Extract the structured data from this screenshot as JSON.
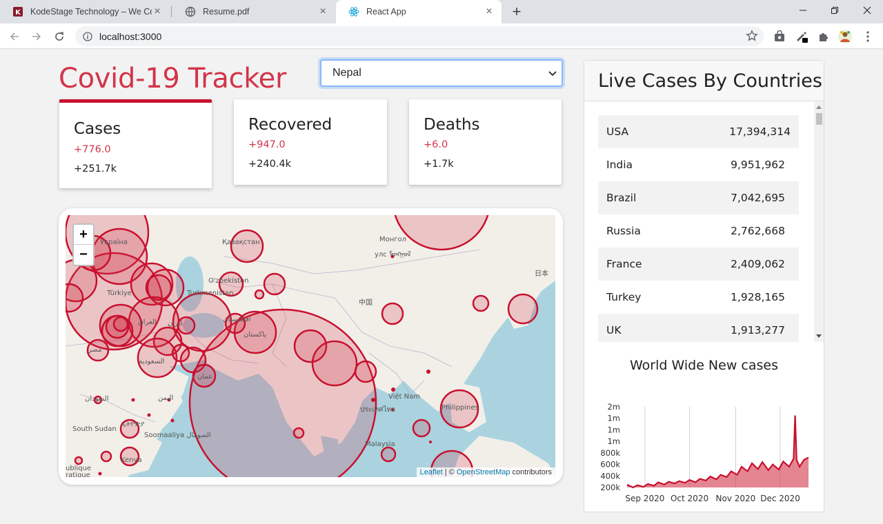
{
  "browser": {
    "tabs": [
      {
        "title": "KodeStage Technology – We Cod",
        "active": false,
        "icon": "kodestage-logo-icon"
      },
      {
        "title": "Resume.pdf",
        "active": false,
        "icon": "globe-icon"
      },
      {
        "title": "React App",
        "active": true,
        "icon": "react-logo-icon"
      }
    ],
    "url": "localhost:3000"
  },
  "app": {
    "title": "Covid-19 Tracker",
    "selected_country": "Nepal"
  },
  "cards": [
    {
      "title": "Cases",
      "today": "+776.0",
      "total": "+251.7k",
      "selected": true
    },
    {
      "title": "Recovered",
      "today": "+947.0",
      "total": "+240.4k",
      "selected": false
    },
    {
      "title": "Deaths",
      "today": "+6.0",
      "total": "+1.7k",
      "selected": false
    }
  ],
  "map": {
    "zoom_in": "+",
    "zoom_out": "−",
    "attribution": {
      "leaflet": "Leaflet",
      "sep": " | © ",
      "osm": "OpenStreetMap",
      "rest": " contributors"
    },
    "labels": [
      "Қазақстан",
      "Монгол",
      "улс ᠮᠣᠩᠭᠣᠯ",
      "日本",
      "O'zbekiston",
      "Turkmenistan",
      "中国",
      "Türkiye",
      "پاکستان",
      "افغانستان",
      "العراق",
      "ایران",
      "مصر",
      "السعودية",
      "عمان",
      "Việt Nam",
      "ประเทศไทย",
      "Philippines",
      "Malaysia",
      "South Sudan",
      "Soomaaliya الصومال",
      "اليمن",
      "السودان",
      "ኢትዮጵያ",
      "Kenya",
      "ublique",
      "ratique",
      "Україна"
    ]
  },
  "live_cases": {
    "title": "Live Cases By Countries",
    "rows": [
      {
        "country": "USA",
        "cases": "17,394,314"
      },
      {
        "country": "India",
        "cases": "9,951,962"
      },
      {
        "country": "Brazil",
        "cases": "7,042,695"
      },
      {
        "country": "Russia",
        "cases": "2,762,668"
      },
      {
        "country": "France",
        "cases": "2,409,062"
      },
      {
        "country": "Turkey",
        "cases": "1,928,165"
      },
      {
        "country": "UK",
        "cases": "1,913,277"
      }
    ]
  },
  "chart_data": {
    "type": "area",
    "title": "World Wide New cases",
    "xlabel": "",
    "ylabel": "",
    "x_tick_labels": [
      "Sep 2020",
      "Oct 2020",
      "Nov 2020",
      "Dec 2020"
    ],
    "y_tick_labels": [
      "2m",
      "1m",
      "1m",
      "1m",
      "800k",
      "600k",
      "400k",
      "200k"
    ],
    "ylim": [
      200000,
      1600000
    ],
    "grid": "vertical",
    "series": [
      {
        "color": "#c8102e",
        "x": [
          "2020-08-20",
          "2020-08-24",
          "2020-08-27",
          "2020-08-31",
          "2020-09-03",
          "2020-09-07",
          "2020-09-10",
          "2020-09-14",
          "2020-09-17",
          "2020-09-21",
          "2020-09-24",
          "2020-09-28",
          "2020-10-01",
          "2020-10-05",
          "2020-10-08",
          "2020-10-12",
          "2020-10-15",
          "2020-10-19",
          "2020-10-22",
          "2020-10-26",
          "2020-10-29",
          "2020-11-02",
          "2020-11-05",
          "2020-11-09",
          "2020-11-12",
          "2020-11-16",
          "2020-11-19",
          "2020-11-23",
          "2020-11-26",
          "2020-11-30",
          "2020-12-03",
          "2020-12-07",
          "2020-12-10",
          "2020-12-11",
          "2020-12-12",
          "2020-12-14",
          "2020-12-17",
          "2020-12-20"
        ],
        "values": [
          250000,
          200000,
          240000,
          210000,
          260000,
          230000,
          290000,
          250000,
          300000,
          270000,
          310000,
          280000,
          330000,
          290000,
          350000,
          320000,
          390000,
          340000,
          420000,
          380000,
          480000,
          420000,
          560000,
          480000,
          620000,
          520000,
          640000,
          500000,
          600000,
          510000,
          650000,
          560000,
          700000,
          1450000,
          680000,
          560000,
          680000,
          720000
        ]
      }
    ]
  }
}
